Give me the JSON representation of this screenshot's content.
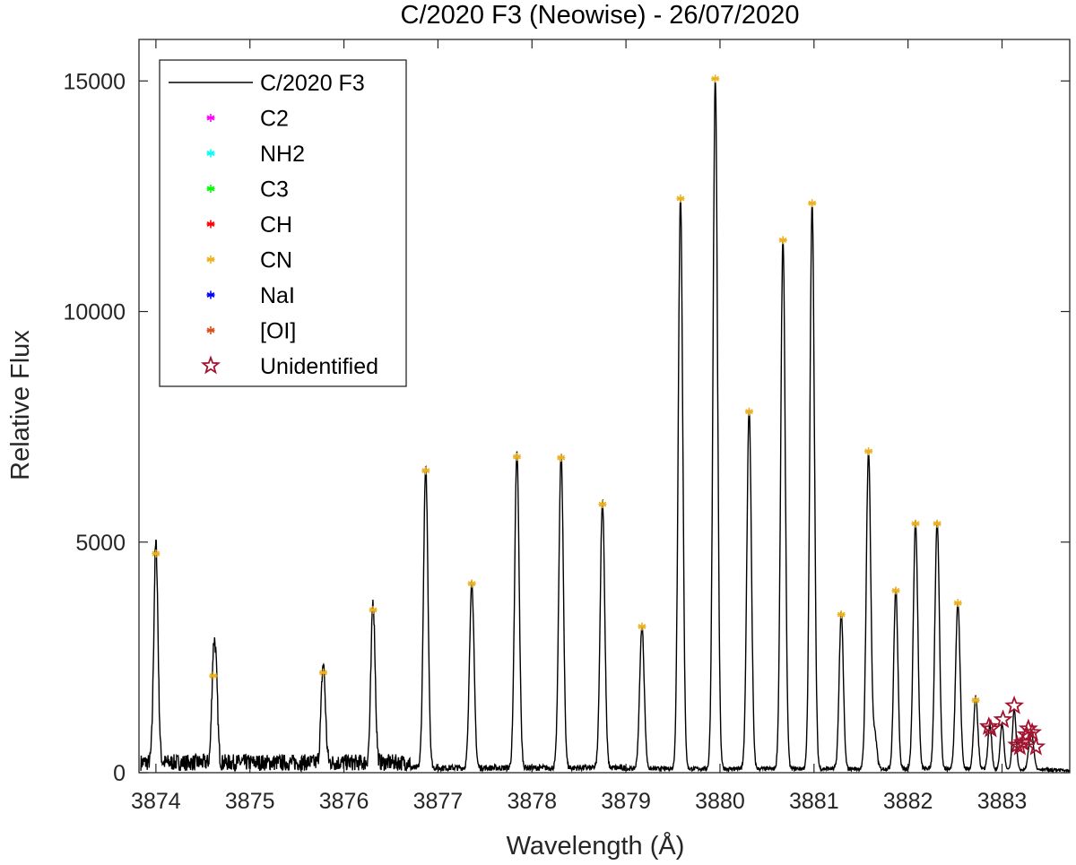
{
  "chart_data": {
    "type": "line",
    "title": "C/2020 F3 (Neowise) - 26/07/2020",
    "xlabel": "Wavelength (Å)",
    "ylabel": "Relative Flux",
    "xlim": [
      3873.82,
      3883.72
    ],
    "ylim": [
      0,
      15900
    ],
    "x_ticks": [
      3874,
      3875,
      3876,
      3877,
      3878,
      3879,
      3880,
      3881,
      3882,
      3883
    ],
    "y_ticks": [
      0,
      5000,
      10000,
      15000
    ],
    "x_tick_labels": [
      "3874",
      "3875",
      "3876",
      "3877",
      "3878",
      "3879",
      "3880",
      "3881",
      "3882",
      "3883"
    ],
    "y_tick_labels": [
      "0",
      "5000",
      "10000",
      "15000"
    ],
    "grid": false,
    "legend_position": "top-left",
    "legend": [
      {
        "label": "C/2020 F3",
        "marker": "line",
        "color": "#000000"
      },
      {
        "label": "C2",
        "marker": "asterisk",
        "color": "#ff00ff"
      },
      {
        "label": "NH2",
        "marker": "asterisk",
        "color": "#00ffff"
      },
      {
        "label": "C3",
        "marker": "asterisk",
        "color": "#00ff00"
      },
      {
        "label": "CH",
        "marker": "asterisk",
        "color": "#ff0000"
      },
      {
        "label": "CN",
        "marker": "asterisk",
        "color": "#edb120"
      },
      {
        "label": "NaI",
        "marker": "asterisk",
        "color": "#0000ff"
      },
      {
        "label": "[OI]",
        "marker": "asterisk",
        "color": "#d95319"
      },
      {
        "label": "Unidentified",
        "marker": "star",
        "color": "#a2142f"
      }
    ],
    "spectrum_peaks": [
      {
        "x": 3874.0,
        "y": 4750,
        "w": 0.022
      },
      {
        "x": 3874.61,
        "y": 2000,
        "w": 0.018
      },
      {
        "x": 3874.64,
        "y": 1750,
        "w": 0.018
      },
      {
        "x": 3875.78,
        "y": 2150,
        "w": 0.022
      },
      {
        "x": 3876.31,
        "y": 3500,
        "w": 0.022
      },
      {
        "x": 3876.87,
        "y": 6500,
        "w": 0.024
      },
      {
        "x": 3877.36,
        "y": 4050,
        "w": 0.024
      },
      {
        "x": 3877.84,
        "y": 6850,
        "w": 0.024
      },
      {
        "x": 3878.31,
        "y": 6800,
        "w": 0.024
      },
      {
        "x": 3878.75,
        "y": 5800,
        "w": 0.024
      },
      {
        "x": 3879.17,
        "y": 3100,
        "w": 0.024
      },
      {
        "x": 3879.58,
        "y": 12400,
        "w": 0.024
      },
      {
        "x": 3879.95,
        "y": 14950,
        "w": 0.024
      },
      {
        "x": 3880.31,
        "y": 7800,
        "w": 0.024
      },
      {
        "x": 3880.67,
        "y": 11500,
        "w": 0.024
      },
      {
        "x": 3880.98,
        "y": 12300,
        "w": 0.024
      },
      {
        "x": 3881.29,
        "y": 3400,
        "w": 0.022
      },
      {
        "x": 3881.58,
        "y": 6900,
        "w": 0.024
      },
      {
        "x": 3881.65,
        "y": 700,
        "w": 0.02
      },
      {
        "x": 3881.87,
        "y": 3900,
        "w": 0.022
      },
      {
        "x": 3882.08,
        "y": 5350,
        "w": 0.024
      },
      {
        "x": 3882.31,
        "y": 5350,
        "w": 0.024
      },
      {
        "x": 3882.53,
        "y": 3600,
        "w": 0.024
      },
      {
        "x": 3882.72,
        "y": 1550,
        "w": 0.022
      },
      {
        "x": 3882.87,
        "y": 950,
        "w": 0.02
      },
      {
        "x": 3883.0,
        "y": 1000,
        "w": 0.02
      },
      {
        "x": 3883.13,
        "y": 1300,
        "w": 0.02
      },
      {
        "x": 3883.31,
        "y": 850,
        "w": 0.025
      }
    ],
    "CN": {
      "color": "#edb120",
      "x": [
        3874.0,
        3874.61,
        3875.78,
        3876.31,
        3876.87,
        3877.36,
        3877.84,
        3878.31,
        3878.75,
        3879.17,
        3879.58,
        3879.95,
        3880.31,
        3880.67,
        3880.98,
        3881.29,
        3881.58,
        3881.87,
        3882.08,
        3882.31,
        3882.53,
        3882.72
      ],
      "y": [
        4750,
        2100,
        2170,
        3530,
        6550,
        4100,
        6850,
        6830,
        5820,
        3170,
        12450,
        15050,
        7830,
        11550,
        12350,
        3430,
        6970,
        3950,
        5400,
        5400,
        3680,
        1570
      ]
    },
    "Unidentified": {
      "color": "#a2142f",
      "x": [
        3882.86,
        3882.88,
        3883.01,
        3883.13,
        3883.16,
        3883.19,
        3883.22,
        3883.26,
        3883.28,
        3883.32,
        3883.36
      ],
      "y": [
        1000,
        950,
        1150,
        1450,
        600,
        560,
        650,
        820,
        950,
        870,
        560
      ]
    }
  }
}
